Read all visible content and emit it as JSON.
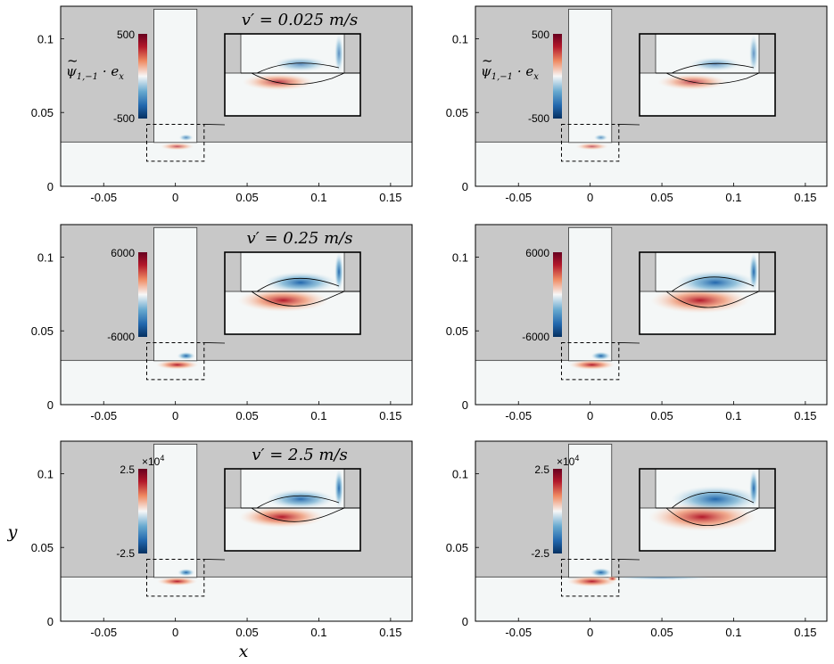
{
  "colors": {
    "background_gray": "#c8c8c8",
    "domain_white": "#f4f7f7",
    "positive_red": "#b2182b",
    "negative_blue": "#2166ac",
    "line_black": "#000000"
  },
  "chart_data": [
    {
      "type": "heatmap",
      "row": 1,
      "column": 1,
      "title": "v′ = 0.025 m/s",
      "colorbar_label": "ψ̃₁,₋₁ · eₓ",
      "colorbar_max": "500",
      "colorbar_min": "-500",
      "colorbar_range": [
        -500,
        500
      ],
      "colorbar_exponent": "",
      "x_ticks": [
        "-0.05",
        "0",
        "0.05",
        "0.1",
        "0.15"
      ],
      "y_ticks": [
        "0",
        "0.05",
        "0.1"
      ],
      "xlim": [
        -0.08,
        0.165
      ],
      "ylim": [
        0,
        0.122
      ],
      "intensity": 0.35
    },
    {
      "type": "heatmap",
      "row": 1,
      "column": 2,
      "title": "",
      "colorbar_label": "ψ̃₁,₋₁ · eₓ",
      "colorbar_max": "500",
      "colorbar_min": "-500",
      "colorbar_range": [
        -500,
        500
      ],
      "colorbar_exponent": "",
      "x_ticks": [
        "-0.05",
        "0",
        "0.05",
        "0.1",
        "0.15"
      ],
      "y_ticks": [
        "0",
        "0.05",
        "0.1"
      ],
      "xlim": [
        -0.08,
        0.165
      ],
      "ylim": [
        0,
        0.122
      ],
      "intensity": 0.3
    },
    {
      "type": "heatmap",
      "row": 2,
      "column": 1,
      "title": "v′ = 0.25 m/s",
      "colorbar_label": "",
      "colorbar_max": "6000",
      "colorbar_min": "-6000",
      "colorbar_range": [
        -6000,
        6000
      ],
      "colorbar_exponent": "",
      "x_ticks": [
        "-0.05",
        "0",
        "0.05",
        "0.1",
        "0.15"
      ],
      "y_ticks": [
        "0",
        "0.05",
        "0.1"
      ],
      "xlim": [
        -0.08,
        0.165
      ],
      "ylim": [
        0,
        0.122
      ],
      "intensity": 0.7
    },
    {
      "type": "heatmap",
      "row": 2,
      "column": 2,
      "title": "",
      "colorbar_label": "",
      "colorbar_max": "6000",
      "colorbar_min": "-6000",
      "colorbar_range": [
        -6000,
        6000
      ],
      "colorbar_exponent": "",
      "x_ticks": [
        "-0.05",
        "0",
        "0.05",
        "0.1",
        "0.15"
      ],
      "y_ticks": [
        "0",
        "0.05",
        "0.1"
      ],
      "xlim": [
        -0.08,
        0.165
      ],
      "ylim": [
        0,
        0.122
      ],
      "intensity": 0.85
    },
    {
      "type": "heatmap",
      "row": 3,
      "column": 1,
      "title": "v′ = 2.5 m/s",
      "colorbar_label": "",
      "colorbar_max": "2.5",
      "colorbar_min": "-2.5",
      "colorbar_range": [
        -25000,
        25000
      ],
      "colorbar_exponent": "×10",
      "colorbar_exponent_power": "4",
      "x_ticks": [
        "-0.05",
        "0",
        "0.05",
        "0.1",
        "0.15"
      ],
      "y_ticks": [
        "0",
        "0.05",
        "0.1"
      ],
      "xlim": [
        -0.08,
        0.165
      ],
      "ylim": [
        0,
        0.122
      ],
      "xlabel": "x",
      "ylabel": "y",
      "intensity": 0.6
    },
    {
      "type": "heatmap",
      "row": 3,
      "column": 2,
      "title": "",
      "colorbar_label": "",
      "colorbar_max": "2.5",
      "colorbar_min": "-2.5",
      "colorbar_range": [
        -25000,
        25000
      ],
      "colorbar_exponent": "×10",
      "colorbar_exponent_power": "4",
      "x_ticks": [
        "-0.05",
        "0",
        "0.05",
        "0.1",
        "0.15"
      ],
      "y_ticks": [
        "0",
        "0.05",
        "0.1"
      ],
      "xlim": [
        -0.08,
        0.165
      ],
      "ylim": [
        0,
        0.122
      ],
      "intensity": 1.0
    }
  ],
  "labels": {
    "psi_symbol": "ψ",
    "psi_tilde": "~",
    "psi_subscript": "1,−1",
    "psi_dot": " · e",
    "psi_e_subscript": "x",
    "xlabel": "x",
    "ylabel": "y"
  }
}
